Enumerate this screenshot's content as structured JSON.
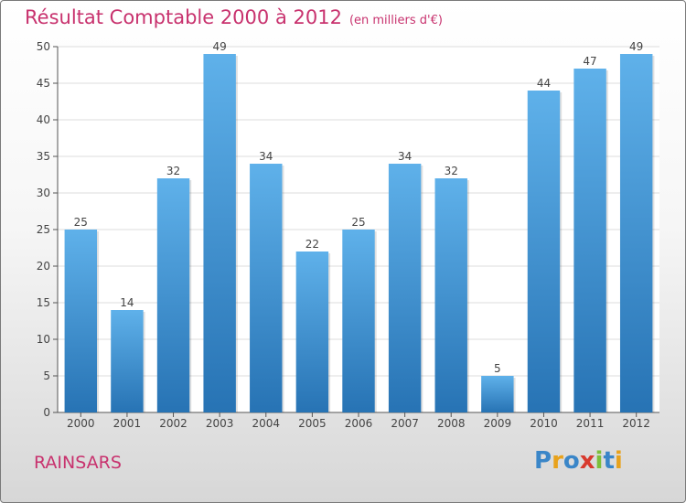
{
  "chart_data": {
    "type": "bar",
    "title": "Résultat Comptable 2000 à 2012",
    "unit_label": "(en milliers d'€)",
    "categories": [
      "2000",
      "2001",
      "2002",
      "2003",
      "2004",
      "2005",
      "2006",
      "2007",
      "2008",
      "2009",
      "2010",
      "2011",
      "2012"
    ],
    "values": [
      25,
      14,
      32,
      49,
      34,
      22,
      25,
      34,
      32,
      5,
      44,
      47,
      49
    ],
    "ylim": [
      0,
      50
    ],
    "yticks": [
      0,
      5,
      10,
      15,
      20,
      25,
      30,
      35,
      40,
      45,
      50
    ],
    "grid": true,
    "xlabel": "",
    "ylabel": ""
  },
  "place_name": "RAINSARS",
  "brand": {
    "name": "Proxiti",
    "letters": [
      "P",
      "r",
      "o",
      "x",
      "i",
      "t",
      "i"
    ]
  },
  "colors": {
    "title": "#c8326e",
    "bar_light": "#5fb1ea",
    "bar_dark": "#2773b4",
    "grid": "#dddddd",
    "axis": "#555555"
  }
}
